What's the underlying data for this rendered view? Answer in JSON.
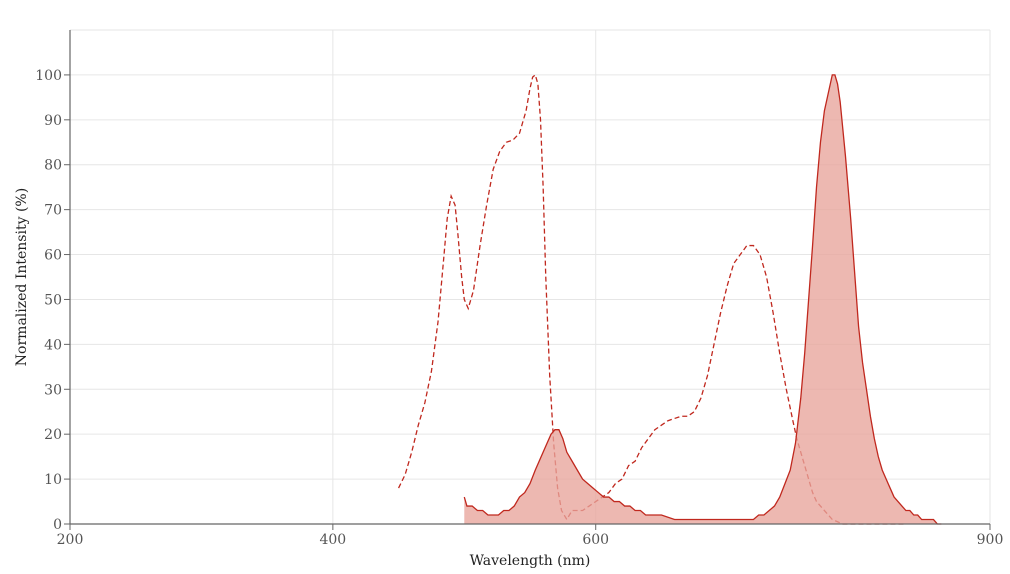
{
  "chart_data": {
    "type": "area",
    "title": "",
    "xlabel": "Wavelength (nm)",
    "ylabel": "Normalized Intensity (%)",
    "xlim": [
      200,
      900
    ],
    "ylim": [
      0,
      110
    ],
    "xticks": [
      200,
      400,
      600,
      900
    ],
    "yticks": [
      0,
      10,
      20,
      30,
      40,
      50,
      60,
      70,
      80,
      90,
      100
    ],
    "grid": true,
    "legend": "none",
    "colors": {
      "line": "#c0281e",
      "fill": "#e8a49b"
    },
    "series": [
      {
        "style": "dashed",
        "x": [
          450,
          455,
          460,
          465,
          470,
          475,
          480,
          484,
          487,
          490,
          493,
          495,
          498,
          500,
          503,
          507,
          512,
          517,
          522,
          527,
          532,
          537,
          542,
          547,
          550,
          552,
          554,
          556,
          558,
          560,
          562,
          565,
          568,
          571,
          574,
          578,
          582,
          586,
          590,
          595,
          600,
          605,
          610,
          615,
          620,
          625,
          630,
          635,
          640,
          645,
          650,
          655,
          660,
          665,
          670,
          675,
          680,
          685,
          690,
          695,
          700,
          705,
          710,
          715,
          720,
          725,
          730,
          735,
          740,
          745,
          750,
          753,
          756,
          759,
          762,
          765,
          768,
          771,
          774,
          777,
          780,
          784,
          788,
          792,
          796,
          800,
          805,
          810,
          815,
          820,
          825,
          830,
          835
        ],
        "values": [
          8,
          11,
          16,
          22,
          27,
          34,
          45,
          58,
          68,
          73,
          71,
          65,
          55,
          50,
          48,
          52,
          62,
          71,
          79,
          83,
          85,
          85.5,
          87,
          92,
          97,
          99.5,
          100,
          98,
          90,
          75,
          55,
          33,
          18,
          8,
          3,
          1,
          3,
          3,
          3,
          4,
          5,
          6,
          7,
          9,
          10,
          13,
          14,
          17,
          19,
          21,
          22,
          23,
          23.5,
          24,
          24,
          25,
          28,
          33,
          40,
          47,
          53,
          58,
          60,
          62,
          62,
          60,
          55,
          47,
          38,
          30,
          23,
          19,
          16,
          13,
          10,
          7,
          5,
          4,
          3,
          2,
          1,
          0.5,
          0,
          0,
          0,
          0,
          0,
          0,
          0,
          0,
          0,
          0,
          0
        ]
      },
      {
        "style": "filled",
        "x": [
          500,
          502,
          506,
          510,
          514,
          518,
          522,
          526,
          530,
          534,
          538,
          542,
          546,
          550,
          554,
          557,
          560,
          563,
          566,
          569,
          572,
          575,
          578,
          582,
          586,
          590,
          594,
          598,
          602,
          606,
          610,
          614,
          618,
          622,
          626,
          630,
          634,
          638,
          642,
          646,
          650,
          660,
          670,
          680,
          690,
          700,
          710,
          715,
          720,
          724,
          728,
          732,
          736,
          740,
          744,
          748,
          752,
          756,
          759,
          762,
          765,
          768,
          771,
          774,
          777,
          780,
          782,
          784,
          786,
          788,
          790,
          792,
          794,
          796,
          798,
          800,
          803,
          806,
          809,
          812,
          815,
          818,
          821,
          824,
          827,
          830,
          833,
          836,
          839,
          842,
          845,
          848,
          851,
          854,
          857,
          860,
          863
        ],
        "values": [
          6,
          4,
          4,
          3,
          3,
          2,
          2,
          2,
          3,
          3,
          4,
          6,
          7,
          9,
          12,
          14,
          16,
          18,
          20,
          21,
          21,
          19,
          16,
          14,
          12,
          10,
          9,
          8,
          7,
          6,
          6,
          5,
          5,
          4,
          4,
          3,
          3,
          2,
          2,
          2,
          2,
          1,
          1,
          1,
          1,
          1,
          1,
          1,
          1,
          2,
          2,
          3,
          4,
          6,
          9,
          12,
          18,
          28,
          38,
          50,
          62,
          75,
          85,
          92,
          96,
          100,
          100,
          98,
          94,
          88,
          82,
          75,
          68,
          60,
          52,
          44,
          36,
          30,
          24,
          19,
          15,
          12,
          10,
          8,
          6,
          5,
          4,
          3,
          3,
          2,
          2,
          1,
          1,
          1,
          1,
          0,
          0
        ]
      }
    ]
  }
}
